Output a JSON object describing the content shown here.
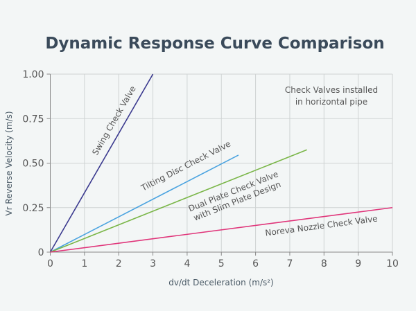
{
  "chart_data": {
    "type": "line",
    "title": "Dynamic Response Curve Comparison",
    "xlabel": "dv/dt Deceleration (m/s²)",
    "ylabel": "Vr Reverse Velocity (m/s)",
    "xlim": [
      0,
      10
    ],
    "ylim": [
      0,
      1.0
    ],
    "x_ticks": [
      "0",
      "1",
      "2",
      "3",
      "4",
      "5",
      "6",
      "7",
      "8",
      "9",
      "10"
    ],
    "y_ticks": [
      "0",
      "0.25",
      "0.50",
      "0.75",
      "1.00"
    ],
    "grid": true,
    "annotation": [
      "Check Valves installed",
      "in horizontal pipe"
    ],
    "series": [
      {
        "name": "Swing Check Valve",
        "label_lines": [
          "Swing Check Valve"
        ],
        "color": "#3b3a8f",
        "x": [
          0,
          3
        ],
        "y": [
          0,
          1.0
        ]
      },
      {
        "name": "Tilting Disc Check Valve",
        "label_lines": [
          "Tilting Disc Check Valve"
        ],
        "color": "#4aa3e0",
        "x": [
          0,
          5.5
        ],
        "y": [
          0,
          0.545
        ]
      },
      {
        "name": "Dual Plate Check Valve with Slim Plate Design",
        "label_lines": [
          "Dual Plate Check Valve",
          "with Slim Plate Design"
        ],
        "color": "#7ab648",
        "x": [
          0,
          7.5
        ],
        "y": [
          0,
          0.575
        ]
      },
      {
        "name": "Noreva Nozzle Check Valve",
        "label_lines": [
          "Noreva Nozzle Check Valve"
        ],
        "color": "#e0357a",
        "x": [
          0,
          10
        ],
        "y": [
          0,
          0.25
        ]
      }
    ]
  }
}
